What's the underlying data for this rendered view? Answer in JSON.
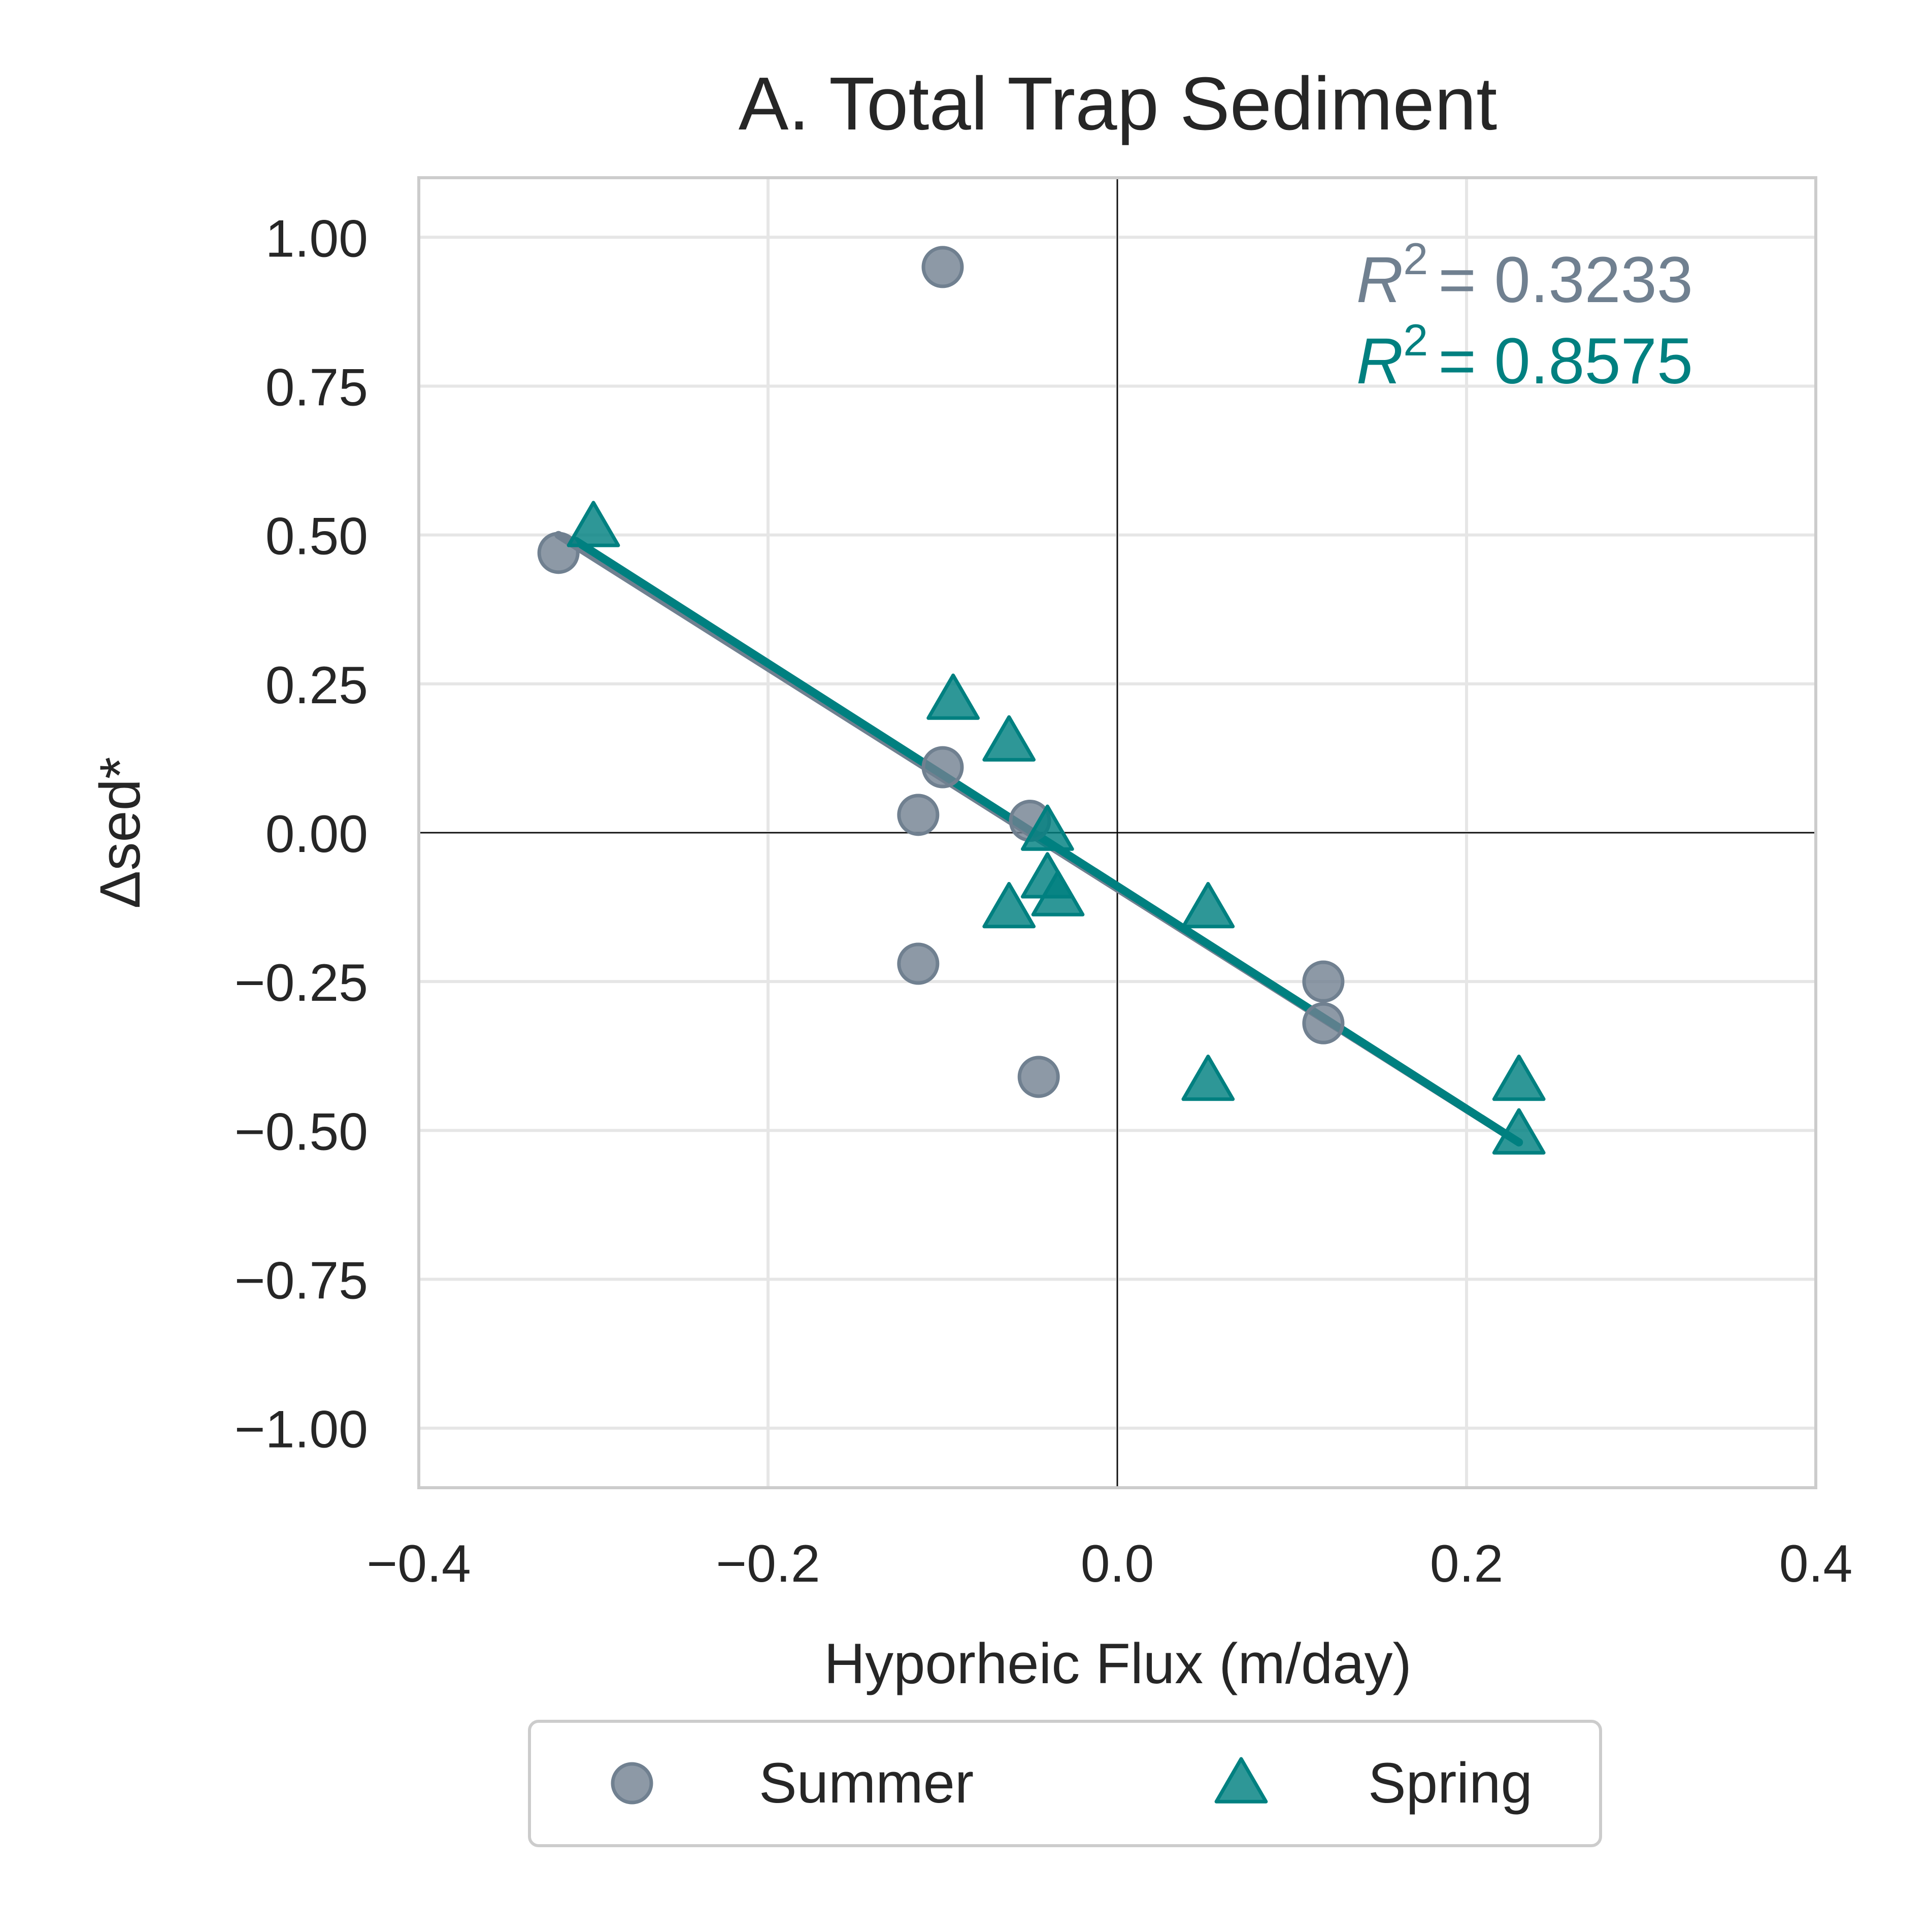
{
  "chart_data": {
    "type": "scatter",
    "title": "A. Total Trap Sediment",
    "xlabel": "Hyporheic Flux (m/day)",
    "ylabel": "Δsed*",
    "xlim": [
      -0.4,
      0.4
    ],
    "ylim": [
      -1.1,
      1.1
    ],
    "x_ticks": [
      -0.4,
      -0.2,
      0.0,
      0.2,
      0.4
    ],
    "x_tick_labels": [
      "−0.4",
      "−0.2",
      "0.0",
      "0.2",
      "0.4"
    ],
    "y_ticks": [
      1.0,
      0.75,
      0.5,
      0.25,
      0.0,
      -0.25,
      -0.5,
      -0.75,
      -1.0
    ],
    "y_tick_labels": [
      "1.00",
      "0.75",
      "0.50",
      "0.25",
      "0.00",
      "−0.25",
      "−0.50",
      "−0.75",
      "−1.00"
    ],
    "grid": true,
    "zero_lines": true,
    "legend": {
      "placement": "bottom-center",
      "ncol": 2
    },
    "series": [
      {
        "name": "Summer",
        "marker": "circle",
        "color": "#708090",
        "points": [
          {
            "x": -0.32,
            "y": 0.47
          },
          {
            "x": -0.1,
            "y": 0.95
          },
          {
            "x": -0.1,
            "y": 0.11
          },
          {
            "x": -0.114,
            "y": 0.03
          },
          {
            "x": -0.05,
            "y": 0.02
          },
          {
            "x": -0.114,
            "y": -0.22
          },
          {
            "x": -0.045,
            "y": -0.41
          },
          {
            "x": 0.118,
            "y": -0.25
          },
          {
            "x": 0.118,
            "y": -0.32
          }
        ],
        "fit": {
          "x": [
            -0.32,
            0.23
          ],
          "y": [
            0.5,
            -0.52
          ]
        },
        "r2_label": "= 0.3233"
      },
      {
        "name": "Spring",
        "marker": "triangle",
        "color": "#008080",
        "points": [
          {
            "x": -0.3,
            "y": 0.51
          },
          {
            "x": -0.094,
            "y": 0.22
          },
          {
            "x": -0.062,
            "y": 0.15
          },
          {
            "x": -0.04,
            "y": 0.0
          },
          {
            "x": -0.04,
            "y": -0.08
          },
          {
            "x": -0.034,
            "y": -0.11
          },
          {
            "x": -0.062,
            "y": -0.13
          },
          {
            "x": 0.052,
            "y": -0.13
          },
          {
            "x": 0.052,
            "y": -0.42
          },
          {
            "x": 0.23,
            "y": -0.42
          },
          {
            "x": 0.23,
            "y": -0.51
          }
        ],
        "fit": {
          "x": [
            -0.31,
            0.23
          ],
          "y": [
            0.49,
            -0.52
          ]
        },
        "r2_label": "= 0.8575"
      }
    ]
  }
}
